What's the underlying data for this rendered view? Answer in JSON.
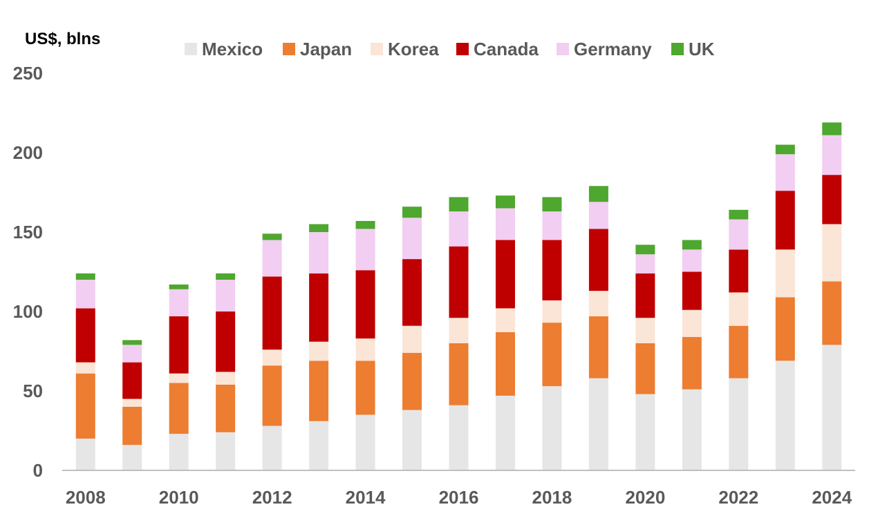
{
  "chart_data": {
    "type": "bar",
    "stacked": true,
    "title": "",
    "ylabel": "US$, blns",
    "xlabel": "",
    "ylim": [
      0,
      250
    ],
    "yticks": [
      "0",
      "50",
      "100",
      "150",
      "200",
      "250"
    ],
    "categories": [
      "2008",
      "2009",
      "2010",
      "2011",
      "2012",
      "2013",
      "2014",
      "2015",
      "2016",
      "2017",
      "2018",
      "2019",
      "2020",
      "2021",
      "2022",
      "2023",
      "2024"
    ],
    "xtick_labels": [
      "2008",
      "",
      "2010",
      "",
      "2012",
      "",
      "2014",
      "",
      "2016",
      "",
      "2018",
      "",
      "2020",
      "",
      "2022",
      "",
      "2024"
    ],
    "legend_position": "top",
    "grid": false,
    "series": [
      {
        "name": "Mexico",
        "color": "#e7e6e6",
        "values": [
          20,
          16,
          23,
          24,
          28,
          31,
          35,
          38,
          41,
          47,
          53,
          58,
          48,
          51,
          58,
          69,
          79
        ]
      },
      {
        "name": "Japan",
        "color": "#ed7d31",
        "values": [
          41,
          24,
          32,
          30,
          38,
          38,
          34,
          36,
          39,
          40,
          40,
          39,
          32,
          33,
          33,
          40,
          40
        ]
      },
      {
        "name": "Korea",
        "color": "#fbe5d6",
        "values": [
          7,
          5,
          6,
          8,
          10,
          12,
          14,
          17,
          16,
          15,
          14,
          16,
          16,
          17,
          21,
          30,
          36
        ]
      },
      {
        "name": "Canada",
        "color": "#c00000",
        "values": [
          34,
          23,
          36,
          38,
          46,
          43,
          43,
          42,
          45,
          43,
          38,
          39,
          28,
          24,
          27,
          37,
          31
        ]
      },
      {
        "name": "Germany",
        "color": "#f2cef2",
        "values": [
          18,
          11,
          17,
          20,
          23,
          26,
          26,
          26,
          22,
          20,
          18,
          17,
          12,
          14,
          19,
          23,
          25
        ]
      },
      {
        "name": "UK",
        "color": "#4ea72e",
        "values": [
          4,
          3,
          3,
          4,
          4,
          5,
          5,
          7,
          9,
          8,
          9,
          10,
          6,
          6,
          6,
          6,
          8
        ]
      }
    ]
  }
}
